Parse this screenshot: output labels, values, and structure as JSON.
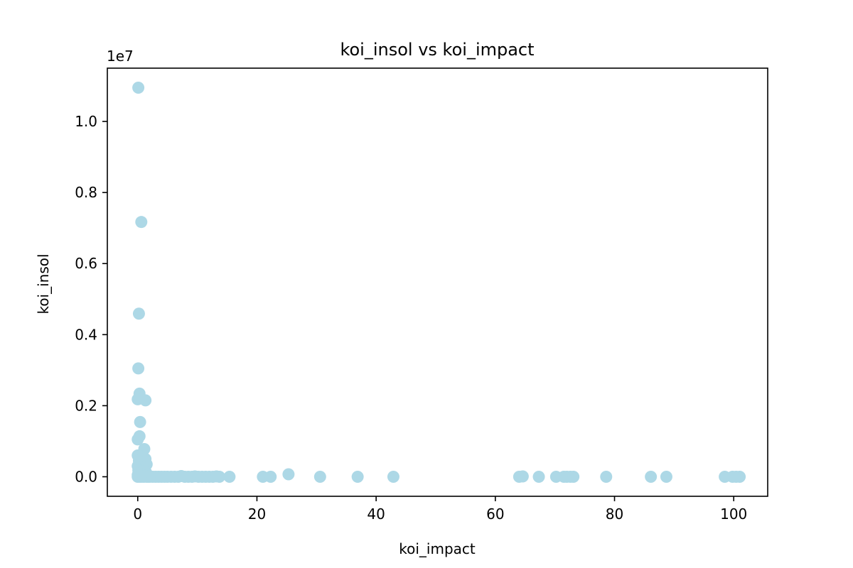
{
  "chart_data": {
    "type": "scatter",
    "title": "koi_insol vs koi_impact",
    "xlabel": "koi_impact",
    "ylabel": "koi_insol",
    "y_offset_label": "1e7",
    "xlim": [
      -5.1,
      105.7
    ],
    "ylim": [
      -0.055,
      1.15
    ],
    "y_scale_factor": 10000000,
    "x_ticks": [
      0,
      20,
      40,
      60,
      80,
      100
    ],
    "x_tick_labels": [
      "0",
      "20",
      "40",
      "60",
      "80",
      "100"
    ],
    "y_ticks": [
      0.0,
      0.2,
      0.4,
      0.6,
      0.8,
      1.0
    ],
    "y_tick_labels": [
      "0.0",
      "0.2",
      "0.4",
      "0.6",
      "0.8",
      "1.0"
    ],
    "grid": false,
    "legend": "none",
    "marker_color": "#add8e6",
    "series": [
      {
        "points": [
          [
            0.1,
            1.095
          ],
          [
            0.6,
            0.717
          ],
          [
            0.2,
            0.459
          ],
          [
            0.1,
            0.305
          ],
          [
            0.3,
            0.234
          ],
          [
            0.0,
            0.218
          ],
          [
            1.3,
            0.215
          ],
          [
            0.4,
            0.154
          ],
          [
            0.3,
            0.114
          ],
          [
            0.0,
            0.105
          ],
          [
            1.1,
            0.078
          ],
          [
            0.0,
            0.06
          ],
          [
            0.6,
            0.058
          ],
          [
            0.9,
            0.055
          ],
          [
            1.3,
            0.05
          ],
          [
            0.2,
            0.045
          ],
          [
            0.5,
            0.04
          ],
          [
            1.5,
            0.035
          ],
          [
            0.0,
            0.03
          ],
          [
            0.7,
            0.028
          ],
          [
            1.0,
            0.025
          ],
          [
            0.3,
            0.022
          ],
          [
            1.2,
            0.02
          ],
          [
            0.1,
            0.018
          ],
          [
            0.8,
            0.015
          ],
          [
            1.4,
            0.012
          ],
          [
            0.4,
            0.01
          ],
          [
            0.9,
            0.008
          ],
          [
            1.6,
            0.006
          ],
          [
            0.0,
            0.005
          ],
          [
            0.5,
            0.004
          ],
          [
            1.1,
            0.003
          ],
          [
            0.2,
            0.002
          ],
          [
            1.3,
            0.002
          ],
          [
            0.7,
            0.001
          ],
          [
            0.0,
            0.0
          ],
          [
            0.3,
            0.0
          ],
          [
            0.6,
            0.0
          ],
          [
            1.0,
            0.0
          ],
          [
            1.5,
            0.0
          ],
          [
            1.8,
            0.0
          ],
          [
            2.0,
            0.0
          ],
          [
            2.5,
            0.0
          ],
          [
            3.0,
            0.0
          ],
          [
            3.5,
            0.0
          ],
          [
            4.0,
            0.0
          ],
          [
            4.5,
            0.0
          ],
          [
            5.0,
            0.0
          ],
          [
            5.6,
            0.0
          ],
          [
            6.2,
            0.0
          ],
          [
            6.8,
            0.0
          ],
          [
            7.3,
            0.002
          ],
          [
            7.9,
            0.0
          ],
          [
            8.5,
            0.0
          ],
          [
            9.1,
            0.0
          ],
          [
            9.6,
            0.001
          ],
          [
            10.2,
            0.0
          ],
          [
            10.8,
            0.0
          ],
          [
            11.4,
            0.0
          ],
          [
            12.0,
            0.0
          ],
          [
            12.6,
            0.0
          ],
          [
            13.2,
            0.001
          ],
          [
            13.7,
            0.0
          ],
          [
            15.4,
            0.0
          ],
          [
            21.0,
            0.0
          ],
          [
            22.3,
            0.0
          ],
          [
            25.3,
            0.007
          ],
          [
            30.6,
            0.0
          ],
          [
            36.9,
            0.0
          ],
          [
            42.9,
            0.0
          ],
          [
            64.0,
            0.0
          ],
          [
            64.6,
            0.001
          ],
          [
            67.3,
            0.0
          ],
          [
            70.2,
            0.0
          ],
          [
            71.5,
            0.0
          ],
          [
            72.0,
            0.0
          ],
          [
            72.6,
            0.0
          ],
          [
            73.1,
            0.0
          ],
          [
            78.6,
            0.0
          ],
          [
            86.1,
            0.0
          ],
          [
            88.7,
            0.0
          ],
          [
            98.5,
            0.0
          ],
          [
            99.8,
            0.0
          ],
          [
            100.4,
            0.0
          ],
          [
            101.0,
            0.0
          ]
        ]
      }
    ]
  }
}
